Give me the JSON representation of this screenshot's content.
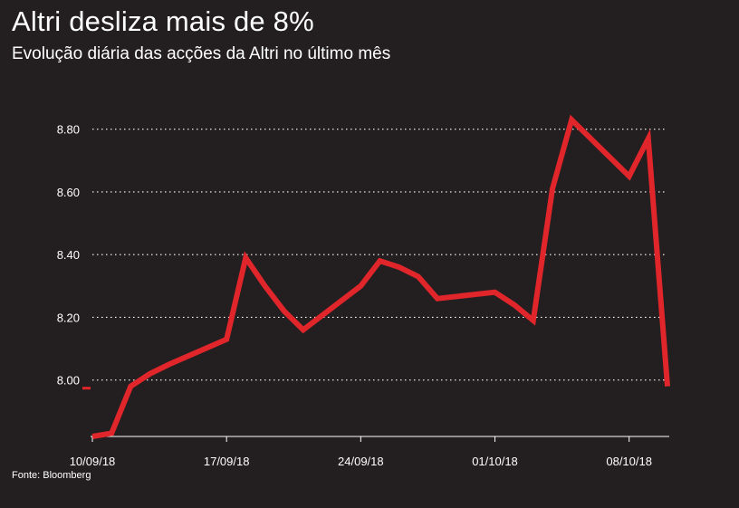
{
  "header": {
    "title": "Altri desliza mais de 8%",
    "subtitle": "Evolução diária das acções da Altri no último mês"
  },
  "footer": {
    "source": "Fonte: Bloomberg"
  },
  "colors": {
    "background": "#231f20",
    "line": "#e0262b",
    "text": "#ffffff",
    "grid": "#ffffff"
  },
  "chart_data": {
    "type": "line",
    "title": "Altri desliza mais de 8%",
    "subtitle": "Evolução diária das acções da Altri no último mês",
    "xlabel": "",
    "ylabel": "",
    "ylim": [
      7.82,
      8.88
    ],
    "yticks": [
      8.0,
      8.2,
      8.4,
      8.6,
      8.8
    ],
    "ytick_labels": [
      "8.00",
      "8.20",
      "8.40",
      "8.60",
      "8.80"
    ],
    "xticks": [
      "2018-09-10",
      "2018-09-17",
      "2018-09-24",
      "2018-10-01",
      "2018-10-08"
    ],
    "xtick_labels": [
      "10/09/18",
      "17/09/18",
      "24/09/18",
      "01/10/18",
      "08/10/18"
    ],
    "grid": "horizontal dotted",
    "series": [
      {
        "points": [
          {
            "x": "2018-09-10",
            "y": 7.82
          },
          {
            "x": "2018-09-11",
            "y": 7.83
          },
          {
            "x": "2018-09-12",
            "y": 7.98
          },
          {
            "x": "2018-09-13",
            "y": 8.02
          },
          {
            "x": "2018-09-14",
            "y": 8.05
          },
          {
            "x": "2018-09-17",
            "y": 8.13
          },
          {
            "x": "2018-09-18",
            "y": 8.39
          },
          {
            "x": "2018-09-19",
            "y": 8.3
          },
          {
            "x": "2018-09-20",
            "y": 8.22
          },
          {
            "x": "2018-09-21",
            "y": 8.16
          },
          {
            "x": "2018-09-24",
            "y": 8.3
          },
          {
            "x": "2018-09-25",
            "y": 8.38
          },
          {
            "x": "2018-09-26",
            "y": 8.36
          },
          {
            "x": "2018-09-27",
            "y": 8.33
          },
          {
            "x": "2018-09-28",
            "y": 8.26
          },
          {
            "x": "2018-10-01",
            "y": 8.28
          },
          {
            "x": "2018-10-02",
            "y": 8.24
          },
          {
            "x": "2018-10-03",
            "y": 8.19
          },
          {
            "x": "2018-10-04",
            "y": 8.61
          },
          {
            "x": "2018-10-05",
            "y": 8.83
          },
          {
            "x": "2018-10-08",
            "y": 8.65
          },
          {
            "x": "2018-10-09",
            "y": 8.77
          },
          {
            "x": "2018-10-10",
            "y": 7.98
          }
        ]
      }
    ]
  }
}
